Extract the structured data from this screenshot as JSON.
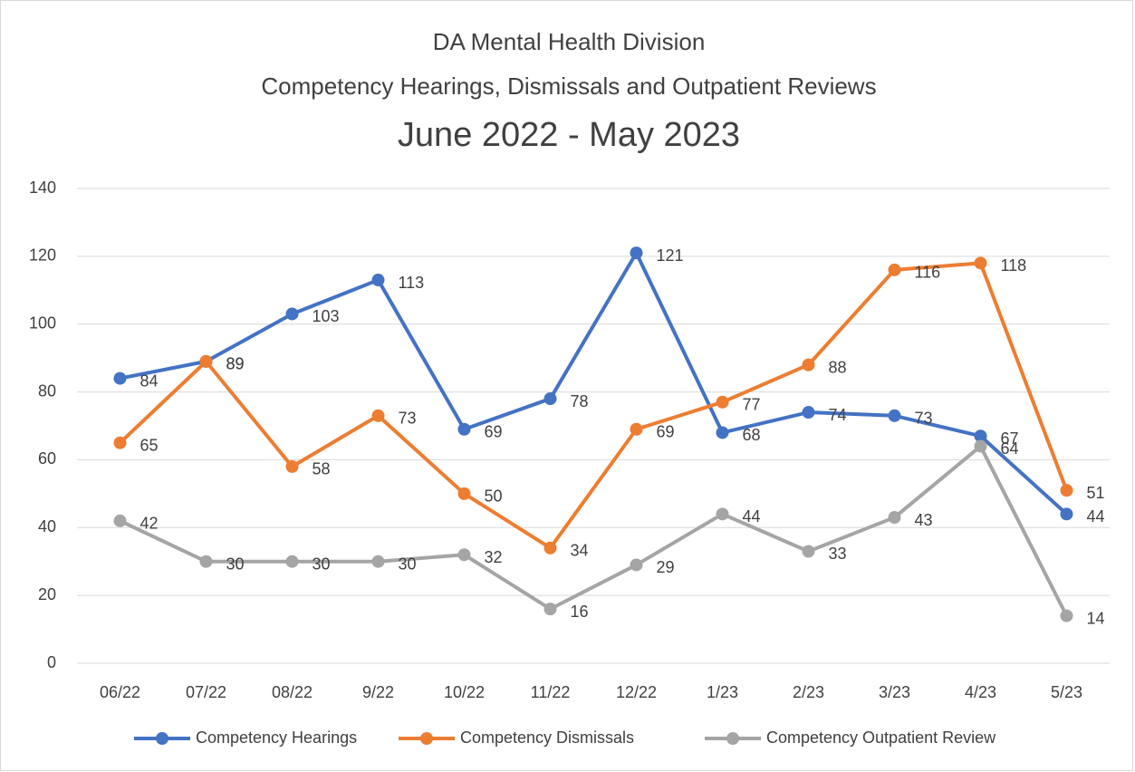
{
  "chart_data": {
    "type": "line",
    "title": [
      "DA Mental Health Division",
      "Competency Hearings, Dismissals and Outpatient Reviews",
      "June 2022 - May 2023"
    ],
    "categories": [
      "06/22",
      "07/22",
      "08/22",
      "9/22",
      "10/22",
      "11/22",
      "12/22",
      "1/23",
      "2/23",
      "3/23",
      "4/23",
      "5/23"
    ],
    "series": [
      {
        "name": "Competency Hearings",
        "color": "#4472c4",
        "values": [
          84,
          89,
          103,
          113,
          69,
          78,
          121,
          68,
          74,
          73,
          67,
          44
        ]
      },
      {
        "name": "Competency Dismissals",
        "color": "#ed7d31",
        "values": [
          65,
          89,
          58,
          73,
          50,
          34,
          69,
          77,
          88,
          116,
          118,
          51
        ]
      },
      {
        "name": "Competency Outpatient Review",
        "color": "#a5a5a5",
        "values": [
          42,
          30,
          30,
          30,
          32,
          16,
          29,
          44,
          33,
          43,
          64,
          14
        ]
      }
    ],
    "ylim": [
      0,
      140
    ],
    "yticks": [
      0,
      20,
      40,
      60,
      80,
      100,
      120,
      140
    ],
    "grid": true,
    "legend": "bottom"
  }
}
